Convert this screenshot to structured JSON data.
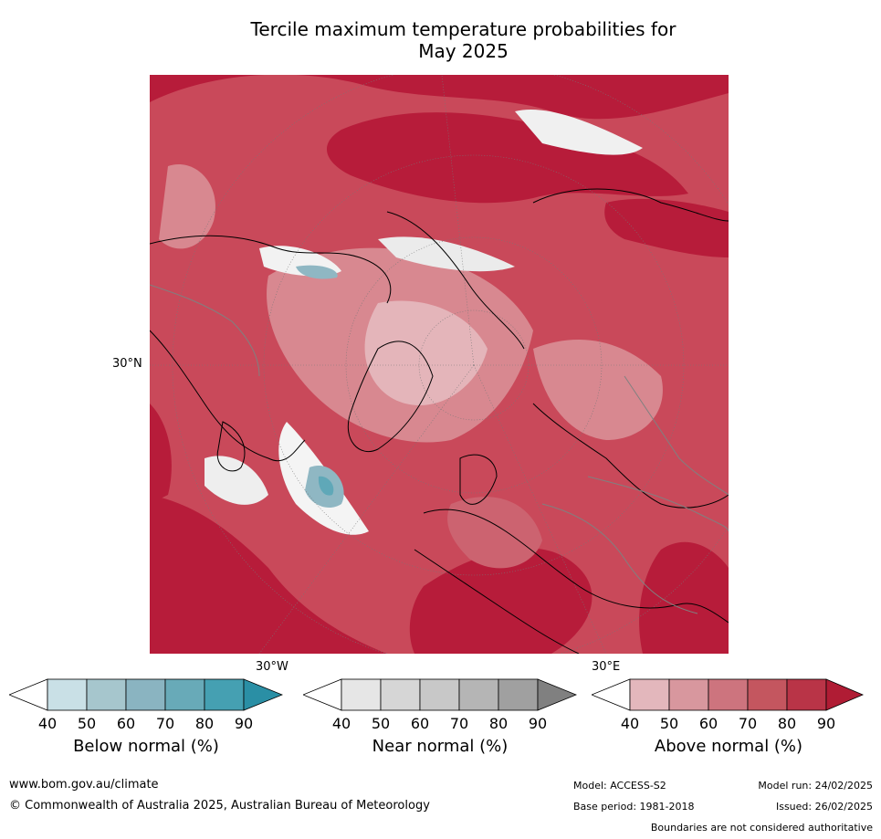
{
  "title": {
    "line1": "Tercile maximum temperature probabilities for",
    "line2": "May 2025"
  },
  "map": {
    "projection": "north-polar-stereographic",
    "lat_label": "30°N",
    "lon_labels": [
      "30°W",
      "30°E"
    ],
    "dominant_category": "Above normal",
    "colors": {
      "above_90": "#b71c3a",
      "above_80": "#c4404f",
      "above_70": "#cc6370",
      "above_60": "#d88890",
      "above_50": "#e4b5ba",
      "near": "#e8e8e8",
      "below_60": "#8fb7c3",
      "below_70": "#5fa8b8",
      "coast": "#000000",
      "border": "#808080"
    }
  },
  "colorbars": [
    {
      "label": "Below normal (%)",
      "ticks": [
        "40",
        "50",
        "60",
        "70",
        "80",
        "90"
      ],
      "colors": [
        "#ffffff",
        "#c9e0e6",
        "#a6c6cd",
        "#8ab4c1",
        "#68aab8",
        "#45a0b2",
        "#2a8fa5"
      ]
    },
    {
      "label": "Near normal (%)",
      "ticks": [
        "40",
        "50",
        "60",
        "70",
        "80",
        "90"
      ],
      "colors": [
        "#ffffff",
        "#e6e6e6",
        "#d6d6d6",
        "#c8c8c8",
        "#b5b5b5",
        "#a0a0a0",
        "#808080"
      ]
    },
    {
      "label": "Above normal (%)",
      "ticks": [
        "40",
        "50",
        "60",
        "70",
        "80",
        "90"
      ],
      "colors": [
        "#ffffff",
        "#e3b7bc",
        "#d8979e",
        "#cd747e",
        "#c4565f",
        "#b93447",
        "#b01c34"
      ]
    }
  ],
  "footer": {
    "url": "www.bom.gov.au/climate",
    "copyright": "© Commonwealth of Australia 2025, Australian Bureau of Meteorology",
    "model": "Model: ACCESS-S2",
    "base_period": "Base period: 1981-2018",
    "model_run": "Model run: 24/02/2025",
    "issued": "Issued: 26/02/2025",
    "disclaimer": "Boundaries are not considered authoritative"
  }
}
